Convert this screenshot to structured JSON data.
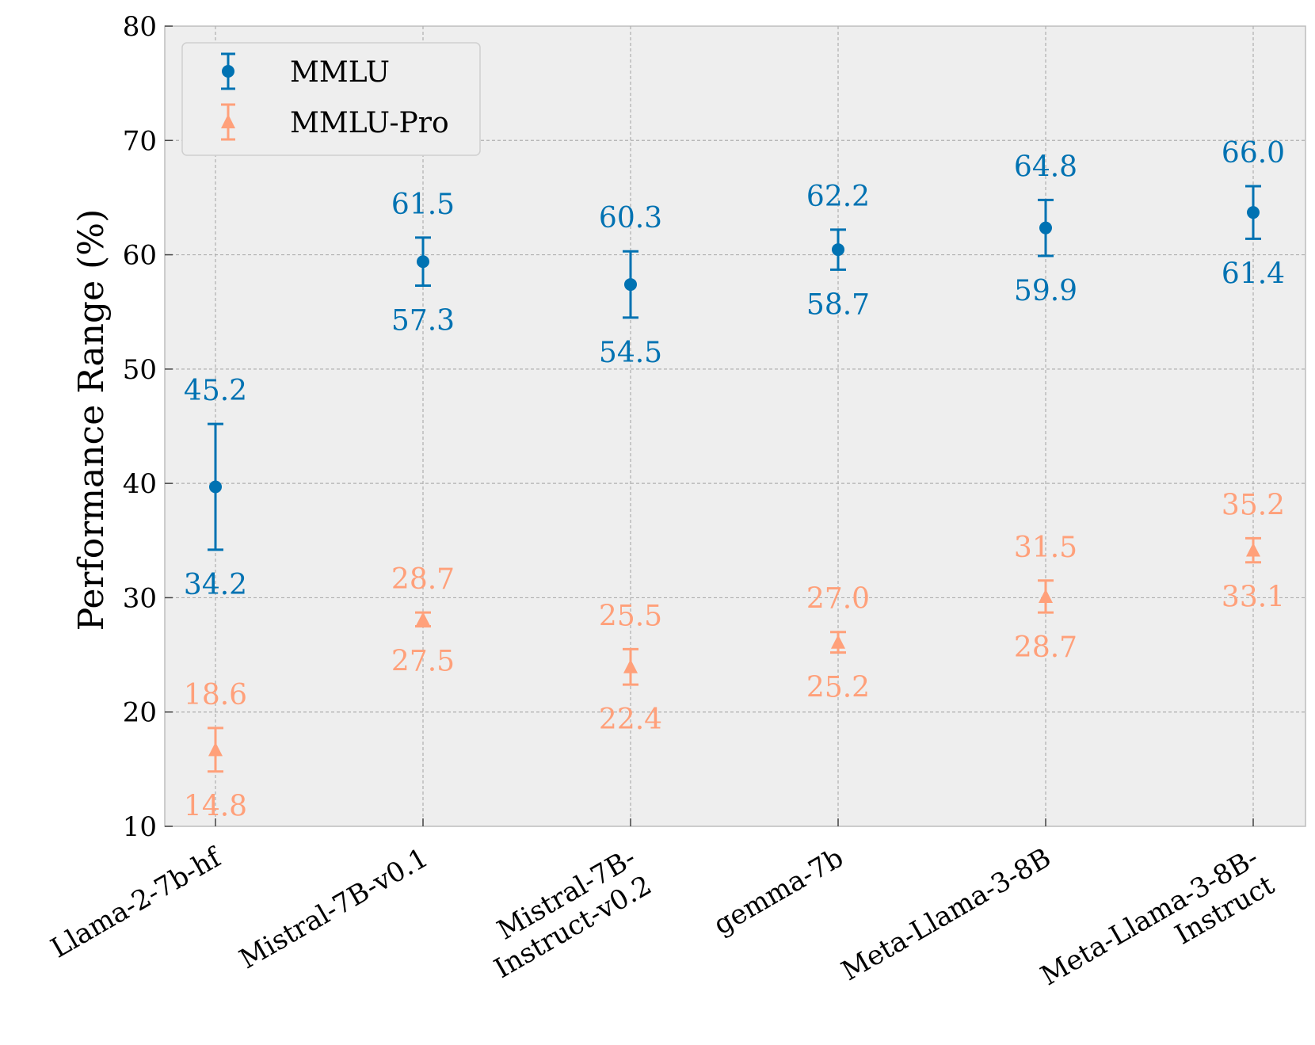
{
  "chart_data": {
    "type": "scatter",
    "subtype": "error-bar range plot",
    "title": "",
    "xlabel": "",
    "ylabel": "Performance Range (%)",
    "ylim": [
      10,
      80
    ],
    "yticks": [
      "10",
      "20",
      "30",
      "40",
      "50",
      "60",
      "70",
      "80"
    ],
    "grid": true,
    "legend_position": "top-left",
    "categories": [
      [
        "Llama-2-7b-hf"
      ],
      [
        "Mistral-7B-v0.1"
      ],
      [
        "Mistral-7B-",
        "Instruct-v0.2"
      ],
      [
        "gemma-7b"
      ],
      [
        "Meta-Llama-3-8B"
      ],
      [
        "Meta-Llama-3-8B-",
        "Instruct"
      ]
    ],
    "series": [
      {
        "name": "MMLU",
        "color": "#0072b2",
        "marker": "circle",
        "min": [
          34.2,
          57.3,
          54.5,
          58.7,
          59.9,
          61.4
        ],
        "max": [
          45.2,
          61.5,
          60.3,
          62.2,
          64.8,
          66.0
        ],
        "min_labels": [
          "34.2",
          "57.3",
          "54.5",
          "58.7",
          "59.9",
          "61.4"
        ],
        "max_labels": [
          "45.2",
          "61.5",
          "60.3",
          "62.2",
          "64.8",
          "66.0"
        ]
      },
      {
        "name": "MMLU-Pro",
        "color": "#ffa07a",
        "marker": "triangle",
        "min": [
          14.8,
          27.5,
          22.4,
          25.2,
          28.7,
          33.1
        ],
        "max": [
          18.6,
          28.7,
          25.5,
          27.0,
          31.5,
          35.2
        ],
        "min_labels": [
          "14.8",
          "27.5",
          "22.4",
          "25.2",
          "28.7",
          "33.1"
        ],
        "max_labels": [
          "18.6",
          "28.7",
          "25.5",
          "27.0",
          "31.5",
          "35.2"
        ]
      }
    ]
  }
}
